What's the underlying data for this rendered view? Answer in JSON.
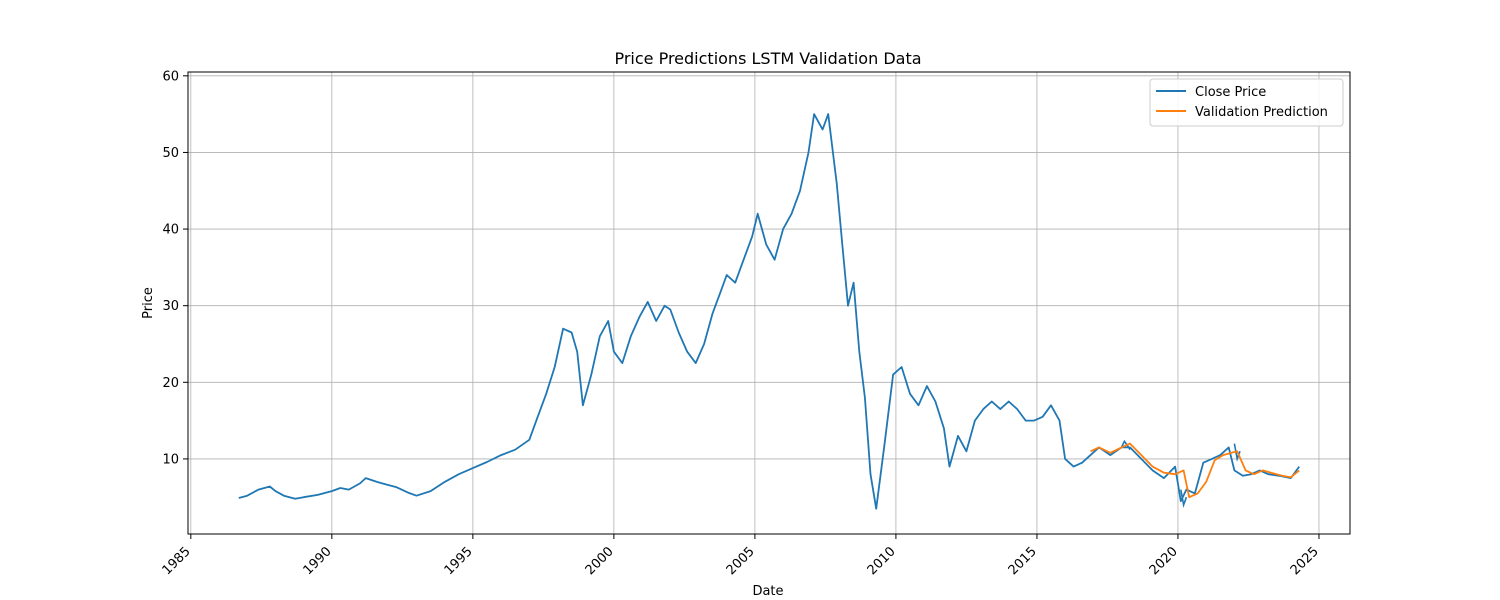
{
  "chart_data": {
    "type": "line",
    "title": "Price Predictions LSTM Validation Data",
    "xlabel": "Date",
    "ylabel": "Price",
    "xlim": [
      1984.9,
      2026.1
    ],
    "ylim": [
      0.2,
      60.5
    ],
    "xticks": [
      1985,
      1990,
      1995,
      2000,
      2005,
      2010,
      2015,
      2020,
      2025
    ],
    "yticks": [
      10,
      20,
      30,
      40,
      50,
      60
    ],
    "grid": true,
    "legend_position": "top-right",
    "series": [
      {
        "name": "Close Price",
        "color": "#1f77b4",
        "x": [
          1986.7,
          1987.0,
          1987.4,
          1987.8,
          1988.0,
          1988.3,
          1988.7,
          1989.0,
          1989.5,
          1990.0,
          1990.3,
          1990.6,
          1991.0,
          1991.2,
          1991.6,
          1992.0,
          1992.3,
          1992.7,
          1993.0,
          1993.5,
          1994.0,
          1994.5,
          1995.0,
          1995.5,
          1996.0,
          1996.5,
          1997.0,
          1997.3,
          1997.6,
          1997.9,
          1998.2,
          1998.5,
          1998.7,
          1998.9,
          1999.2,
          1999.5,
          1999.8,
          2000.0,
          2000.3,
          2000.6,
          2000.9,
          2001.2,
          2001.5,
          2001.8,
          2002.0,
          2002.3,
          2002.6,
          2002.9,
          2003.2,
          2003.5,
          2003.8,
          2004.0,
          2004.3,
          2004.6,
          2004.9,
          2005.1,
          2005.4,
          2005.7,
          2006.0,
          2006.3,
          2006.6,
          2006.9,
          2007.1,
          2007.4,
          2007.6,
          2007.9,
          2008.1,
          2008.3,
          2008.5,
          2008.7,
          2008.9,
          2009.1,
          2009.3,
          2009.6,
          2009.9,
          2010.2,
          2010.5,
          2010.8,
          2011.1,
          2011.4,
          2011.7,
          2011.9,
          2012.2,
          2012.5,
          2012.8,
          2013.1,
          2013.4,
          2013.7,
          2014.0,
          2014.3,
          2014.6,
          2014.9,
          2015.2,
          2015.5,
          2015.8,
          2016.0,
          2016.3,
          2016.6,
          2016.9,
          2017.2,
          2017.6,
          2018.0,
          2018.3,
          2018.7,
          2019.1,
          2019.5,
          2019.9,
          2020.1,
          2020.3,
          2020.6,
          2020.9,
          2021.2,
          2021.5,
          2021.8,
          2022.0,
          2022.3,
          2022.6,
          2022.9,
          2023.2,
          2023.6,
          2024.0,
          2024.3
        ],
        "y": [
          4.9,
          5.2,
          6.0,
          6.4,
          5.8,
          5.2,
          4.8,
          5.0,
          5.3,
          5.8,
          6.2,
          6.0,
          6.8,
          7.5,
          7.0,
          6.6,
          6.3,
          5.6,
          5.2,
          5.8,
          7.0,
          8.0,
          8.8,
          9.6,
          10.5,
          11.2,
          12.5,
          15.5,
          18.5,
          22.0,
          27.0,
          26.5,
          24.0,
          17.0,
          21.0,
          26.0,
          28.0,
          24.0,
          22.5,
          26.0,
          28.5,
          30.5,
          28.0,
          30.0,
          29.5,
          26.5,
          24.0,
          22.5,
          25.0,
          29.0,
          32.0,
          34.0,
          33.0,
          36.0,
          39.0,
          42.0,
          38.0,
          36.0,
          40.0,
          42.0,
          45.0,
          50.0,
          55.0,
          53.0,
          55.0,
          46.0,
          38.0,
          30.0,
          33.0,
          24.0,
          18.0,
          8.0,
          3.5,
          12.0,
          21.0,
          22.0,
          18.5,
          17.0,
          19.5,
          17.5,
          14.0,
          9.0,
          13.0,
          11.0,
          15.0,
          16.5,
          17.5,
          16.5,
          17.5,
          16.5,
          15.0,
          15.0,
          15.5,
          17.0,
          15.0,
          10.0,
          9.0,
          9.5,
          10.5,
          11.5,
          10.5,
          11.5,
          11.5,
          10.0,
          8.5,
          7.5,
          9.0,
          4.5,
          6.0,
          5.5,
          9.5,
          10.0,
          10.5,
          11.5,
          8.5,
          7.8,
          8.0,
          8.5,
          8.0,
          7.8,
          7.5,
          9.0
        ],
        "segments": [
          {
            "x": [
              2018.0,
              2018.1,
              2018.2,
              2018.3
            ],
            "y": [
              11.5,
              12.3,
              11.8,
              11.2
            ]
          },
          {
            "x": [
              2020.1,
              2020.2,
              2020.3
            ],
            "y": [
              6.0,
              4.0,
              5.0
            ]
          },
          {
            "x": [
              2022.0,
              2022.1,
              2022.2
            ],
            "y": [
              12.0,
              10.0,
              11.0
            ]
          }
        ]
      },
      {
        "name": "Validation Prediction",
        "color": "#ff7f0e",
        "x": [
          2016.9,
          2017.2,
          2017.6,
          2018.0,
          2018.3,
          2018.7,
          2019.1,
          2019.5,
          2019.9,
          2020.2,
          2020.4,
          2020.7,
          2021.0,
          2021.3,
          2021.6,
          2021.9,
          2022.1,
          2022.4,
          2022.7,
          2023.0,
          2023.3,
          2023.7,
          2024.0,
          2024.3
        ],
        "y": [
          11.0,
          11.5,
          10.8,
          11.5,
          12.0,
          10.5,
          9.0,
          8.2,
          8.0,
          8.5,
          5.0,
          5.5,
          7.0,
          9.8,
          10.5,
          10.8,
          11.0,
          8.5,
          8.0,
          8.5,
          8.2,
          7.8,
          7.6,
          8.5
        ]
      }
    ]
  }
}
